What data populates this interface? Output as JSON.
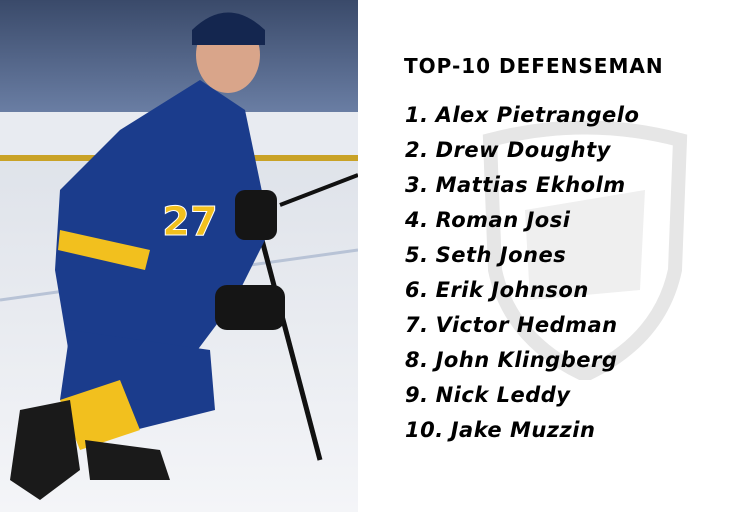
{
  "photo": {
    "jersey_number": "27"
  },
  "list": {
    "title": "TOP-10 DEFENSEMAN",
    "items": [
      {
        "number": "1.",
        "name": "Alex Pietrangelo"
      },
      {
        "number": "2.",
        "name": "Drew Doughty"
      },
      {
        "number": "3.",
        "name": "Mattias Ekholm"
      },
      {
        "number": "4.",
        "name": "Roman Josi"
      },
      {
        "number": "5.",
        "name": "Seth Jones"
      },
      {
        "number": "6.",
        "name": "Erik Johnson"
      },
      {
        "number": "7.",
        "name": "Victor Hedman"
      },
      {
        "number": "8.",
        "name": "John Klingberg"
      },
      {
        "number": "9.",
        "name": "Nick Leddy"
      },
      {
        "number": "10.",
        "name": "Jake Muzzin"
      }
    ]
  }
}
